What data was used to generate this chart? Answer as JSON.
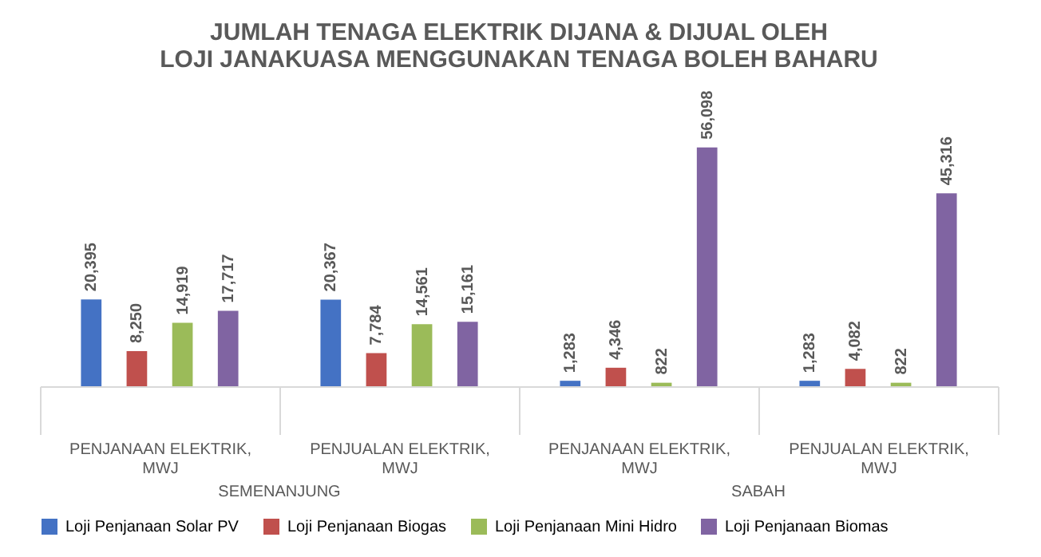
{
  "chart_data": {
    "type": "bar",
    "title": "JUMLAH TENAGA ELEKTRIK DIJANA & DIJUAL OLEH LOJI JANAKUASA MENGGUNAKAN TENAGA BOLEH BAHARU",
    "categories": [
      "PENJANAAN ELEKTRIK, MWJ",
      "PENJUALAN ELEKTRIK, MWJ",
      "PENJANAAN ELEKTRIK, MWJ",
      "PENJUALAN ELEKTRIK, MWJ"
    ],
    "annotations": [
      "SEMENANJUNG",
      "SABAH"
    ],
    "series": [
      {
        "name": "Loji Penjanaan Solar PV",
        "color": "#4472c4",
        "values": [
          20395,
          20367,
          1283,
          1283
        ],
        "value_labels": [
          "20,395",
          "20,367",
          "1,283",
          "1,283"
        ]
      },
      {
        "name": "Loji Penjanaan Biogas",
        "color": "#c0504d",
        "values": [
          8250,
          7784,
          4346,
          4082
        ],
        "value_labels": [
          "8,250",
          "7,784",
          "4,346",
          "4,082"
        ]
      },
      {
        "name": "Loji Penjanaan Mini Hidro",
        "color": "#9bbb59",
        "values": [
          14919,
          14561,
          822,
          822
        ],
        "value_labels": [
          "14,919",
          "14,561",
          "822",
          "822"
        ]
      },
      {
        "name": "Loji Penjanaan Biomas",
        "color": "#8064a2",
        "values": [
          17717,
          15161,
          56098,
          45316
        ],
        "value_labels": [
          "17,717",
          "15,161",
          "56,098",
          "45,316"
        ]
      }
    ],
    "grid": false,
    "legend": "bottom"
  }
}
